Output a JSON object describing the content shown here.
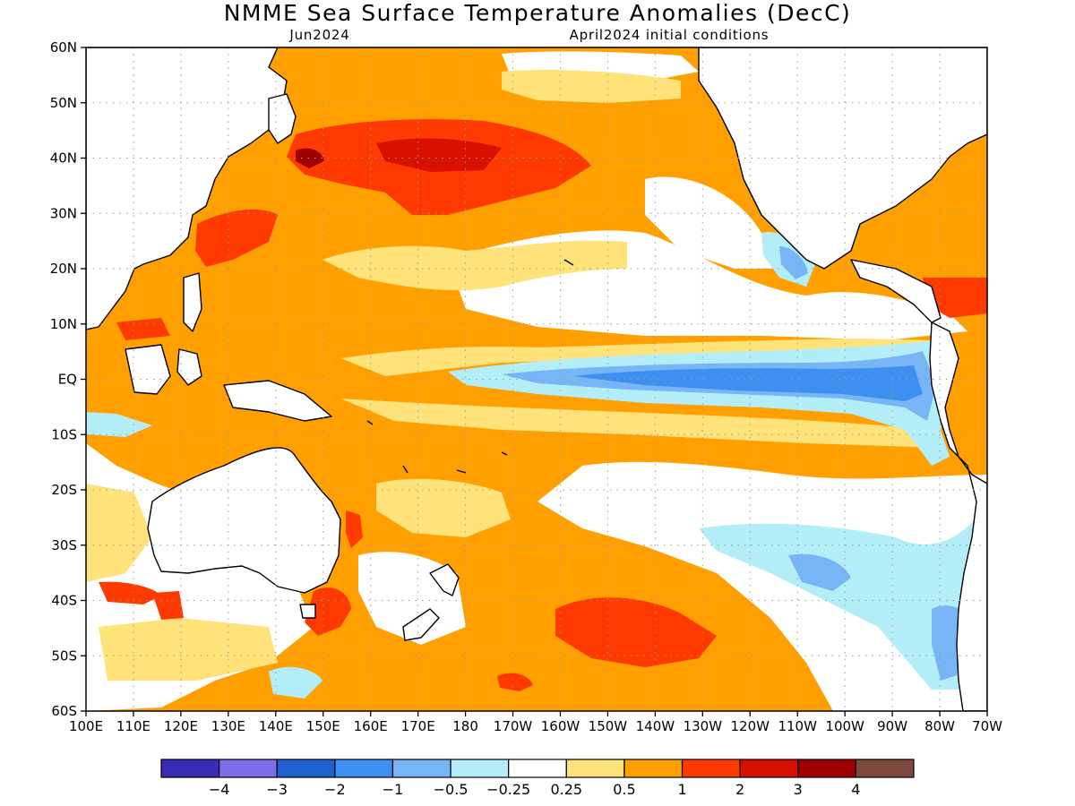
{
  "title": "NMME Sea Surface Temperature Anomalies (DecC)",
  "forecast_month": "Jun2024",
  "initial_conditions": "April2024 initial conditions",
  "map": {
    "latitude_labels": [
      "60N",
      "50N",
      "40N",
      "30N",
      "20N",
      "10N",
      "EQ",
      "10S",
      "20S",
      "30S",
      "40S",
      "50S",
      "60S"
    ],
    "longitude_labels": [
      "100E",
      "110E",
      "120E",
      "130E",
      "140E",
      "150E",
      "160E",
      "170E",
      "180",
      "170W",
      "160W",
      "150W",
      "140W",
      "130W",
      "120W",
      "110W",
      "100W",
      "90W",
      "80W",
      "70W"
    ]
  },
  "colorbar": {
    "colors": [
      "#3a2db5",
      "#7b6ee8",
      "#1f5fcf",
      "#3d8ff0",
      "#77b5f7",
      "#b3eef8",
      "#ffffff",
      "#ffe27a",
      "#ffa000",
      "#ff3a00",
      "#d81000",
      "#a00000",
      "#7b4a3c"
    ],
    "labels": [
      "−4",
      "−3",
      "−2",
      "−1",
      "−0.5",
      "−0.25",
      "0.25",
      "0.5",
      "1",
      "2",
      "3",
      "4"
    ]
  }
}
